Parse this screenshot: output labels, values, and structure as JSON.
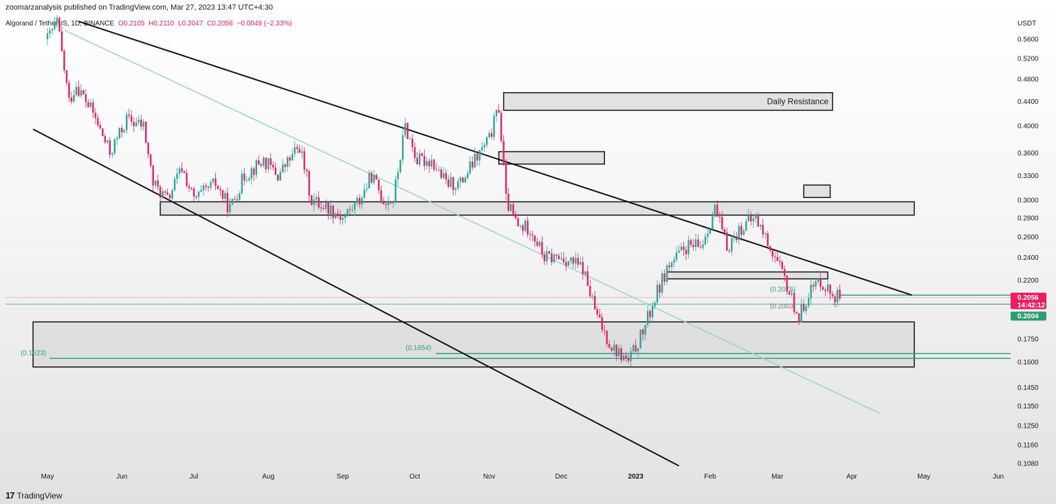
{
  "header": {
    "published": "zoomarzanalysis published on TradingView.com, Mar 27, 2023 13:47 UTC+4:30",
    "symbol": "Algorand / TetherUS, 1D, BINANCE",
    "open": "O0.2105",
    "high": "H0.2110",
    "low": "L0.2047",
    "close": "C0.2056",
    "change": "−0.0049 (−2.33%)"
  },
  "footer": {
    "brand": "TradingView"
  },
  "colors": {
    "up": "#26a69a",
    "down": "#e91e63",
    "price_tag": "#e91e63",
    "level_tag": "#2e9e72"
  },
  "chart_data": {
    "type": "candlestick",
    "symbol": "ALGO/USDT",
    "interval": "1D",
    "exchange": "BINANCE",
    "y_axis_unit": "USDT",
    "y_scale": "log",
    "ylim": [
      0.105,
      0.6
    ],
    "y_ticks": [
      "0.5600",
      "0.5200",
      "0.4800",
      "0.4400",
      "0.4000",
      "0.3600",
      "0.3300",
      "0.3000",
      "0.2800",
      "0.2600",
      "0.2400",
      "0.2200",
      "0.1750",
      "0.1600",
      "0.1450",
      "0.1350",
      "0.1250",
      "0.1160",
      "0.1080"
    ],
    "x_ticks": [
      "May",
      "Jun",
      "Jul",
      "Aug",
      "Sep",
      "Oct",
      "Nov",
      "Dec",
      "2023",
      "Feb",
      "Mar",
      "Apr",
      "May",
      "Jun"
    ],
    "last_price": "0.2056",
    "countdown": "14:42:12",
    "level_tag": "0.2004",
    "close_path": [
      [
        "2022-05-01",
        0.56
      ],
      [
        "2022-05-05",
        0.6
      ],
      [
        "2022-05-10",
        0.44
      ],
      [
        "2022-05-13",
        0.47
      ],
      [
        "2022-05-20",
        0.42
      ],
      [
        "2022-05-27",
        0.36
      ],
      [
        "2022-06-03",
        0.41
      ],
      [
        "2022-06-10",
        0.4
      ],
      [
        "2022-06-14",
        0.32
      ],
      [
        "2022-06-20",
        0.3
      ],
      [
        "2022-06-26",
        0.34
      ],
      [
        "2022-07-01",
        0.3
      ],
      [
        "2022-07-10",
        0.32
      ],
      [
        "2022-07-16",
        0.29
      ],
      [
        "2022-07-22",
        0.33
      ],
      [
        "2022-07-30",
        0.35
      ],
      [
        "2022-08-05",
        0.33
      ],
      [
        "2022-08-14",
        0.37
      ],
      [
        "2022-08-19",
        0.3
      ],
      [
        "2022-08-27",
        0.29
      ],
      [
        "2022-09-01",
        0.28
      ],
      [
        "2022-09-08",
        0.3
      ],
      [
        "2022-09-13",
        0.33
      ],
      [
        "2022-09-18",
        0.3
      ],
      [
        "2022-09-22",
        0.3
      ],
      [
        "2022-09-27",
        0.4
      ],
      [
        "2022-10-02",
        0.35
      ],
      [
        "2022-10-08",
        0.35
      ],
      [
        "2022-10-14",
        0.32
      ],
      [
        "2022-10-20",
        0.32
      ],
      [
        "2022-10-26",
        0.35
      ],
      [
        "2022-11-01",
        0.38
      ],
      [
        "2022-11-05",
        0.43
      ],
      [
        "2022-11-08",
        0.3
      ],
      [
        "2022-11-13",
        0.27
      ],
      [
        "2022-11-18",
        0.27
      ],
      [
        "2022-11-24",
        0.24
      ],
      [
        "2022-12-02",
        0.24
      ],
      [
        "2022-12-10",
        0.23
      ],
      [
        "2022-12-16",
        0.19
      ],
      [
        "2022-12-22",
        0.17
      ],
      [
        "2022-12-29",
        0.16
      ],
      [
        "2023-01-04",
        0.18
      ],
      [
        "2023-01-10",
        0.21
      ],
      [
        "2023-01-14",
        0.23
      ],
      [
        "2023-01-22",
        0.25
      ],
      [
        "2023-01-28",
        0.25
      ],
      [
        "2023-02-03",
        0.29
      ],
      [
        "2023-02-08",
        0.25
      ],
      [
        "2023-02-14",
        0.27
      ],
      [
        "2023-02-20",
        0.28
      ],
      [
        "2023-02-26",
        0.25
      ],
      [
        "2023-03-04",
        0.22
      ],
      [
        "2023-03-10",
        0.19
      ],
      [
        "2023-03-14",
        0.21
      ],
      [
        "2023-03-19",
        0.22
      ],
      [
        "2023-03-23",
        0.21
      ],
      [
        "2023-03-27",
        0.2056
      ]
    ],
    "zones": [
      {
        "label": "Daily Resistance",
        "from": "2022-11-07",
        "to": "2023-03-24",
        "low": 0.425,
        "high": 0.455
      },
      {
        "label": "",
        "from": "2022-11-05",
        "to": "2022-12-19",
        "low": 0.345,
        "high": 0.362
      },
      {
        "label": "",
        "from": "2023-03-12",
        "to": "2023-03-23",
        "low": 0.303,
        "high": 0.318
      },
      {
        "label": "",
        "from": "2022-06-17",
        "to": "2023-04-27",
        "low": 0.283,
        "high": 0.298
      },
      {
        "label": "",
        "from": "2023-01-14",
        "to": "2023-03-22",
        "low": 0.221,
        "high": 0.227
      },
      {
        "label": "",
        "from": "2022-04-25",
        "to": "2023-04-27",
        "low": 0.157,
        "high": 0.187
      }
    ],
    "horizontal_levels": [
      {
        "value": 0.1623,
        "label": "(0.1623)"
      },
      {
        "value": 0.1654,
        "label": "(0.1654)"
      },
      {
        "value": 0.2075,
        "label": "(0.2075)"
      },
      {
        "value": 0.2003,
        "label": "(0.2003)"
      }
    ],
    "trendlines": [
      {
        "from": [
          "2022-05-14",
          0.6
        ],
        "to": [
          "2023-04-26",
          0.2075
        ]
      },
      {
        "from": [
          "2022-04-25",
          0.395
        ],
        "to": [
          "2023-01-19",
          0.107
        ]
      },
      {
        "from": [
          "2022-05-08",
          0.58
        ],
        "to": [
          "2023-04-13",
          0.131
        ]
      }
    ]
  }
}
